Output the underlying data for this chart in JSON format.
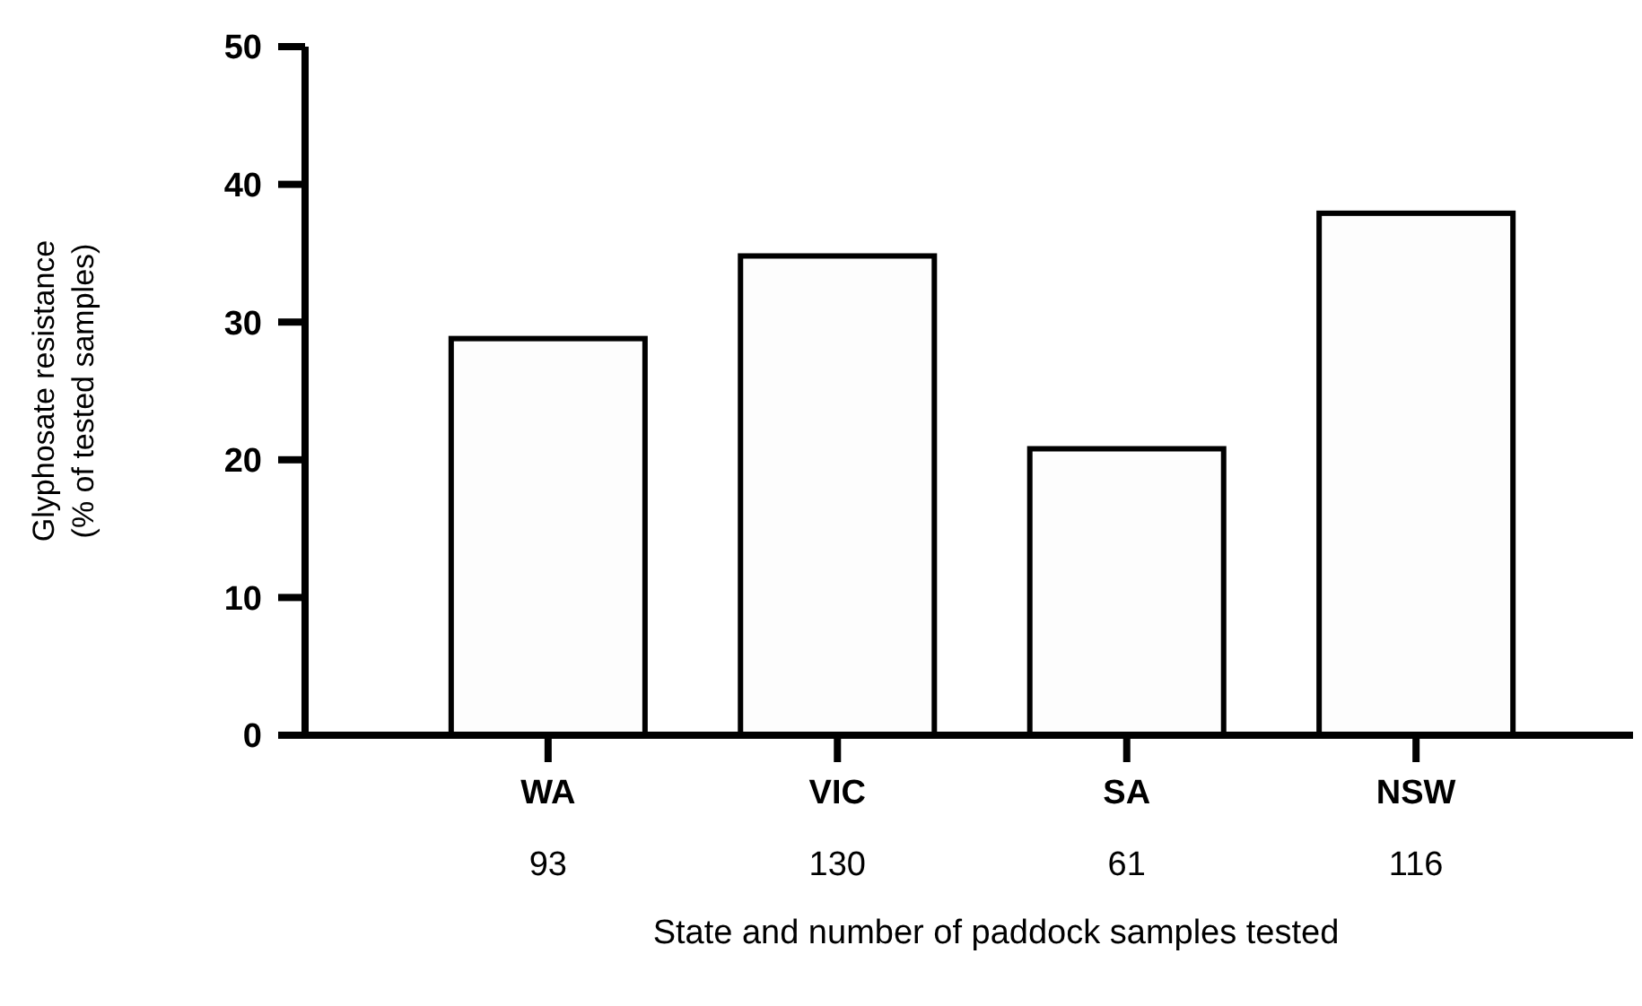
{
  "chart_data": {
    "type": "bar",
    "categories": [
      "WA\n93",
      "VIC\n130",
      "SA\n61",
      "NSW\n116"
    ],
    "values": [
      28.8,
      34.8,
      20.8,
      37.9
    ],
    "color": "#fdfdfd",
    "ylabel": "Glyphosate resistance\n(% of tested samples)",
    "xlabel": "State and number of paddock samples tested",
    "ylim": [
      0,
      50
    ],
    "yticks": [
      0,
      10,
      20,
      30,
      40,
      50
    ],
    "grid": false
  }
}
